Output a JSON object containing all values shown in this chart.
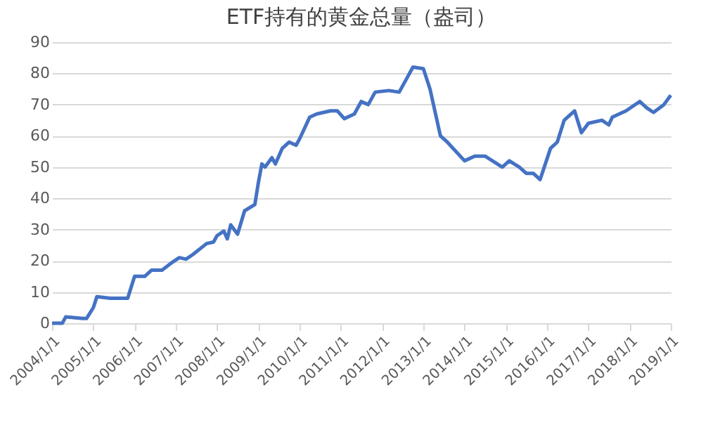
{
  "chart_data": {
    "type": "line",
    "title": "ETF持有的黄金总量（盎司）",
    "x": [
      "2004-01",
      "2004-04",
      "2004-05",
      "2004-10",
      "2004-11",
      "2005-01",
      "2005-02",
      "2005-06",
      "2005-11",
      "2006-01",
      "2006-04",
      "2006-06",
      "2006-09",
      "2006-12",
      "2007-02",
      "2007-04",
      "2007-06",
      "2007-10",
      "2007-12",
      "2008-01",
      "2008-03",
      "2008-04",
      "2008-05",
      "2008-07",
      "2008-09",
      "2008-12",
      "2009-01",
      "2009-02",
      "2009-03",
      "2009-05",
      "2009-06",
      "2009-08",
      "2009-10",
      "2009-12",
      "2010-01",
      "2010-04",
      "2010-06",
      "2010-10",
      "2010-12",
      "2011-02",
      "2011-05",
      "2011-07",
      "2011-09",
      "2011-11",
      "2012-03",
      "2012-06",
      "2012-08",
      "2012-10",
      "2013-01",
      "2013-03",
      "2013-06",
      "2013-08",
      "2014-01",
      "2014-04",
      "2014-07",
      "2014-12",
      "2015-02",
      "2015-05",
      "2015-07",
      "2015-09",
      "2015-11",
      "2016-02",
      "2016-04",
      "2016-06",
      "2016-09",
      "2016-11",
      "2017-01",
      "2017-05",
      "2017-07",
      "2017-08",
      "2017-12",
      "2018-04",
      "2018-06",
      "2018-08",
      "2018-11",
      "2019-01"
    ],
    "series": [
      {
        "color": "#4472c4",
        "values": [
          0,
          0,
          2,
          1.5,
          1.5,
          5,
          8.5,
          8,
          8,
          15,
          15,
          17,
          17,
          19.5,
          21,
          20.5,
          22,
          25.5,
          26,
          28,
          29.5,
          27,
          31.5,
          28.5,
          36,
          38,
          45,
          51,
          50,
          53,
          51,
          56,
          58,
          57,
          59,
          66,
          67,
          68,
          68,
          65.5,
          67,
          71,
          70,
          74,
          74.5,
          74,
          78,
          82,
          81.5,
          75,
          60,
          58,
          52,
          53.5,
          53.5,
          50,
          52,
          50,
          48,
          48,
          46,
          56,
          58,
          65,
          68,
          61,
          64,
          65,
          63.5,
          66,
          68,
          71,
          69,
          67.5,
          70,
          73
        ]
      }
    ],
    "xlim": [
      "2004-01-01",
      "2019-01-01"
    ],
    "xticks": [
      {
        "value": "2004-01-01",
        "label": "2004/1/1"
      },
      {
        "value": "2005-01-01",
        "label": "2005/1/1"
      },
      {
        "value": "2006-01-01",
        "label": "2006/1/1"
      },
      {
        "value": "2007-01-01",
        "label": "2007/1/1"
      },
      {
        "value": "2008-01-01",
        "label": "2008/1/1"
      },
      {
        "value": "2009-01-01",
        "label": "2009/1/1"
      },
      {
        "value": "2010-01-01",
        "label": "2010/1/1"
      },
      {
        "value": "2011-01-01",
        "label": "2011/1/1"
      },
      {
        "value": "2012-01-01",
        "label": "2012/1/1"
      },
      {
        "value": "2013-01-01",
        "label": "2013/1/1"
      },
      {
        "value": "2014-01-01",
        "label": "2014/1/1"
      },
      {
        "value": "2015-01-01",
        "label": "2015/1/1"
      },
      {
        "value": "2016-01-01",
        "label": "2016/1/1"
      },
      {
        "value": "2017-01-01",
        "label": "2017/1/1"
      },
      {
        "value": "2018-01-01",
        "label": "2018/1/1"
      },
      {
        "value": "2019-01-01",
        "label": "2019/1/1"
      }
    ],
    "ylim": [
      0,
      90
    ],
    "yticks": [
      0,
      10,
      20,
      30,
      40,
      50,
      60,
      70,
      80,
      90
    ],
    "grid": "y",
    "legend": false,
    "marker": "none",
    "line_style": "solid"
  }
}
